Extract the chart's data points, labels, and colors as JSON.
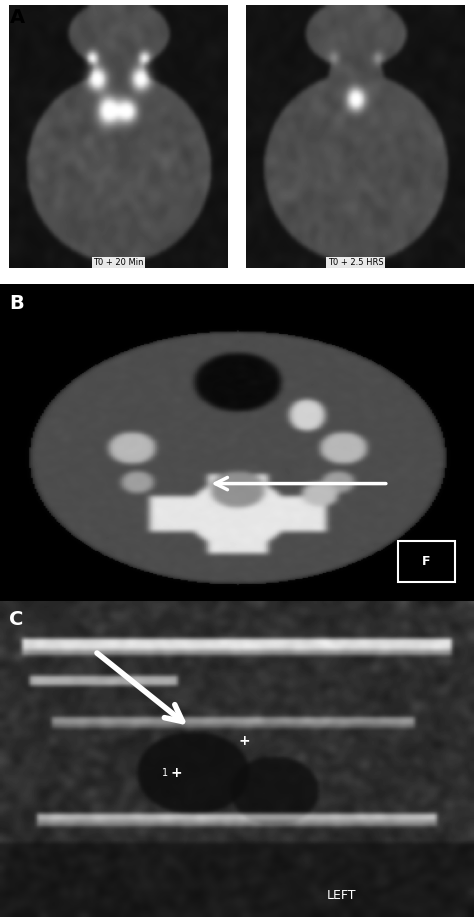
{
  "panel_A_label": "A",
  "panel_B_label": "B",
  "panel_C_label": "C",
  "panel_A_text_left": "T0 + 20 Min",
  "panel_A_text_right": "T0 + 2.5 HRS",
  "panel_C_label_text": "LEFT",
  "background_color": "#ffffff",
  "panel_A_bg": "#ffffff",
  "panel_B_bg": "#000000",
  "panel_C_bg": "#111111"
}
